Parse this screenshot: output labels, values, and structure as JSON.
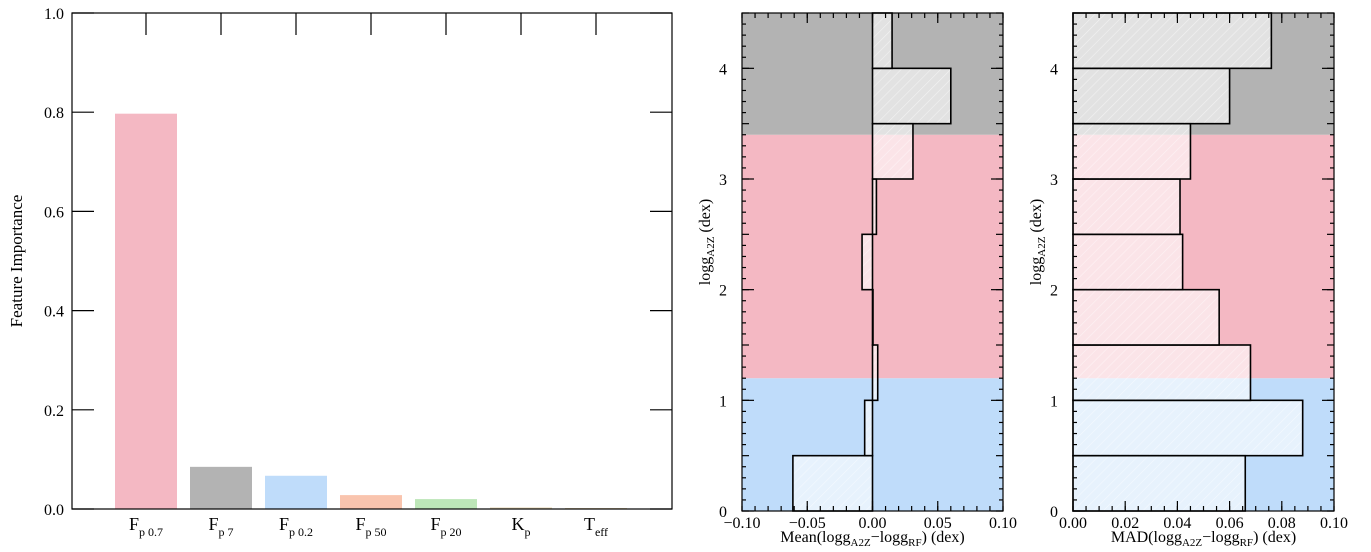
{
  "colors": {
    "pink": "#f4b8c3",
    "gray": "#b3b3b3",
    "blue": "#bfdcfa",
    "orange": "#f9c4ae",
    "green": "#bde6b8",
    "tan": "#e6d6b5"
  },
  "chart_data": [
    {
      "type": "bar",
      "ylabel": "Feature Importance",
      "ylim": [
        0,
        1.0
      ],
      "yticks": [
        "0.0",
        "0.2",
        "0.4",
        "0.6",
        "0.8",
        "1.0"
      ],
      "categories": [
        {
          "base": "F",
          "sub": "p 0.7"
        },
        {
          "base": "F",
          "sub": "p 7"
        },
        {
          "base": "F",
          "sub": "p 0.2"
        },
        {
          "base": "F",
          "sub": "p 50"
        },
        {
          "base": "F",
          "sub": "p 20"
        },
        {
          "base": "K",
          "sub": "p"
        },
        {
          "base": "T",
          "sub": "eff"
        }
      ],
      "values": [
        0.797,
        0.085,
        0.067,
        0.028,
        0.02,
        0.003,
        0.002
      ],
      "bar_colors": [
        "pink",
        "gray",
        "blue",
        "orange",
        "green",
        "tan",
        "tan"
      ]
    },
    {
      "type": "bar",
      "orientation": "horizontal",
      "xlabel": {
        "pre": "Mean(logg",
        "s1": "A2Z",
        "mid": "−logg",
        "s2": "RF",
        "post": ") (dex)"
      },
      "ylabel": {
        "pre": "logg",
        "sub": "A2Z",
        "post": " (dex)"
      },
      "xlim": [
        -0.1,
        0.1
      ],
      "ylim": [
        0,
        4.5
      ],
      "xticks": [
        "−0.10",
        "−0.05",
        "0.00",
        "0.05",
        "0.10"
      ],
      "yticks": [
        "0",
        "1",
        "2",
        "3",
        "4"
      ],
      "background_bands": [
        {
          "from": 0,
          "to": 1.2,
          "color": "blue"
        },
        {
          "from": 1.2,
          "to": 3.4,
          "color": "pink"
        },
        {
          "from": 3.4,
          "to": 4.5,
          "color": "gray"
        }
      ],
      "bins": [
        [
          0,
          0.5
        ],
        [
          0.5,
          1.0
        ],
        [
          1.0,
          1.5
        ],
        [
          1.5,
          2.0
        ],
        [
          2.0,
          2.5
        ],
        [
          2.5,
          3.0
        ],
        [
          3.0,
          3.5
        ],
        [
          3.5,
          4.0
        ],
        [
          4.0,
          4.5
        ]
      ],
      "values": [
        -0.061,
        -0.006,
        0.004,
        0.0,
        -0.008,
        0.003,
        0.031,
        0.06,
        0.015
      ]
    },
    {
      "type": "bar",
      "orientation": "horizontal",
      "xlabel": {
        "pre": "MAD(logg",
        "s1": "A2Z",
        "mid": "−logg",
        "s2": "RF",
        "post": ") (dex)"
      },
      "ylabel": {
        "pre": "logg",
        "sub": "A2Z",
        "post": " (dex)"
      },
      "xlim": [
        0,
        0.1
      ],
      "ylim": [
        0,
        4.5
      ],
      "xticks": [
        "0.00",
        "0.02",
        "0.04",
        "0.06",
        "0.08",
        "0.10"
      ],
      "yticks": [
        "0",
        "1",
        "2",
        "3",
        "4"
      ],
      "background_bands": [
        {
          "from": 0,
          "to": 1.2,
          "color": "blue"
        },
        {
          "from": 1.2,
          "to": 3.4,
          "color": "pink"
        },
        {
          "from": 3.4,
          "to": 4.5,
          "color": "gray"
        }
      ],
      "bins": [
        [
          0,
          0.5
        ],
        [
          0.5,
          1.0
        ],
        [
          1.0,
          1.5
        ],
        [
          1.5,
          2.0
        ],
        [
          2.0,
          2.5
        ],
        [
          2.5,
          3.0
        ],
        [
          3.0,
          3.5
        ],
        [
          3.5,
          4.0
        ],
        [
          4.0,
          4.5
        ]
      ],
      "values": [
        0.066,
        0.088,
        0.068,
        0.056,
        0.042,
        0.041,
        0.045,
        0.06,
        0.076
      ]
    }
  ]
}
